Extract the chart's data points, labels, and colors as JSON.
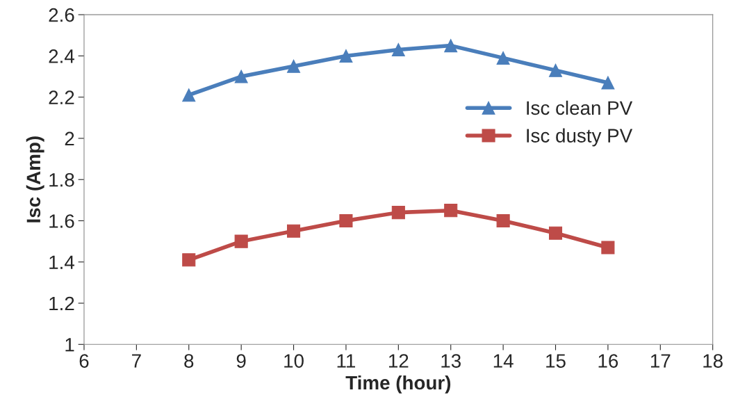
{
  "chart_data": {
    "type": "line",
    "xlabel": "Time (hour)",
    "ylabel": "Isc (Amp)",
    "x": [
      8,
      9,
      10,
      11,
      12,
      13,
      14,
      15,
      16
    ],
    "series": [
      {
        "name": "Isc clean PV",
        "color": "#4a7ebb",
        "marker": "triangle",
        "values": [
          2.21,
          2.3,
          2.35,
          2.4,
          2.43,
          2.45,
          2.39,
          2.33,
          2.27
        ]
      },
      {
        "name": "Isc dusty PV",
        "color": "#be4b48",
        "marker": "square",
        "values": [
          1.41,
          1.5,
          1.55,
          1.6,
          1.64,
          1.65,
          1.6,
          1.54,
          1.47
        ]
      }
    ],
    "xlim": [
      6,
      18
    ],
    "xticks": [
      6,
      7,
      8,
      9,
      10,
      11,
      12,
      13,
      14,
      15,
      16,
      17,
      18
    ],
    "ylim": [
      1,
      2.6
    ],
    "yticks": [
      {
        "value": 1,
        "label": "1"
      },
      1.2,
      1.4,
      1.6,
      1.8,
      {
        "value": 2,
        "label": "2"
      },
      2.2,
      2.4,
      2.6
    ],
    "grid": false,
    "legend": "right",
    "line_style": "solid"
  }
}
